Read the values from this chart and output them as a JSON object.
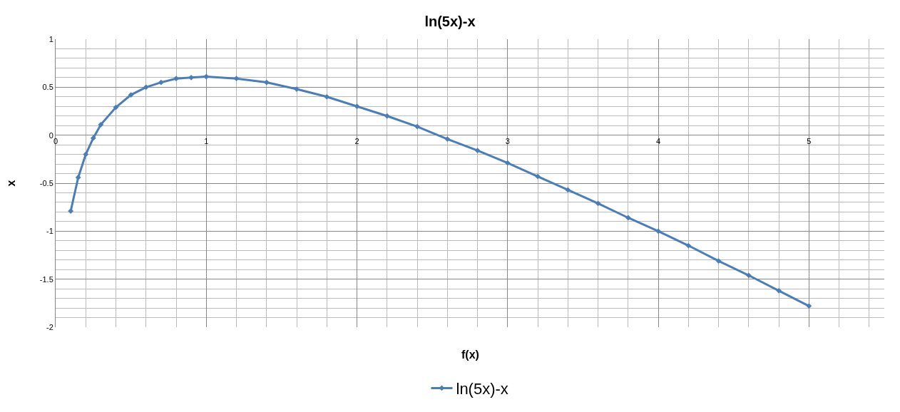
{
  "chart_data": {
    "type": "line",
    "title": "ln(5x)-x",
    "xlabel": "f(x)",
    "ylabel": "x",
    "x": [
      0.1,
      0.15,
      0.2,
      0.25,
      0.3,
      0.4,
      0.5,
      0.6,
      0.7,
      0.8,
      0.9,
      1.0,
      1.2,
      1.4,
      1.6,
      1.8,
      2.0,
      2.2,
      2.4,
      2.6,
      2.8,
      3.0,
      3.2,
      3.4,
      3.6,
      3.8,
      4.0,
      4.2,
      4.4,
      4.6,
      4.8,
      5.0
    ],
    "series": [
      {
        "name": "ln(5x)-x",
        "color": "#4a7ebb",
        "values": [
          -0.79,
          -0.44,
          -0.2,
          -0.03,
          0.11,
          0.29,
          0.42,
          0.5,
          0.55,
          0.59,
          0.6,
          0.61,
          0.59,
          0.55,
          0.48,
          0.4,
          0.3,
          0.2,
          0.09,
          -0.04,
          -0.16,
          -0.29,
          -0.43,
          -0.57,
          -0.71,
          -0.86,
          -1.0,
          -1.15,
          -1.31,
          -1.46,
          -1.62,
          -1.78
        ]
      }
    ],
    "xlim": [
      0,
      5.5
    ],
    "xticks": [
      0,
      1,
      2,
      3,
      4,
      5
    ],
    "ylim": [
      -2,
      1
    ],
    "yticks": [
      -2,
      -1.5,
      -1,
      -0.5,
      0,
      0.5,
      1
    ],
    "grid": true,
    "legend": "bottom",
    "marker": "diamond",
    "line_style": "solid"
  }
}
